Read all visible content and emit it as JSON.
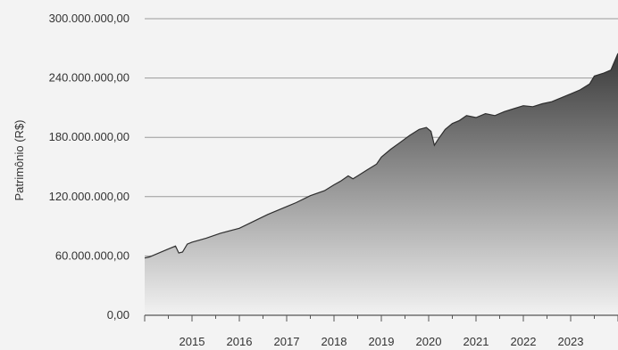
{
  "chart_data": {
    "type": "area",
    "title": "",
    "xlabel": "",
    "ylabel": "Patrimônio (R$)",
    "ylim": [
      0,
      300000000
    ],
    "yticks": [
      {
        "value": 0,
        "label": "0,00"
      },
      {
        "value": 60000000,
        "label": "60.000.000,00"
      },
      {
        "value": 120000000,
        "label": "120.000.000,00"
      },
      {
        "value": 180000000,
        "label": "180.000.000,00"
      },
      {
        "value": 240000000,
        "label": "240.000.000,00"
      },
      {
        "value": 300000000,
        "label": "300.000.000,00"
      }
    ],
    "xlim": [
      2014.0,
      2024.0
    ],
    "xticks": [
      {
        "value": 2015,
        "label": "2015"
      },
      {
        "value": 2016,
        "label": "2016"
      },
      {
        "value": 2017,
        "label": "2017"
      },
      {
        "value": 2018,
        "label": "2018"
      },
      {
        "value": 2019,
        "label": "2019"
      },
      {
        "value": 2020,
        "label": "2020"
      },
      {
        "value": 2021,
        "label": "2021"
      },
      {
        "value": 2022,
        "label": "2022"
      },
      {
        "value": 2023,
        "label": "2023"
      }
    ],
    "grid": "horizontal",
    "fill_gradient": {
      "top": "#3a3a3a",
      "bottom": "#f2f2f2"
    },
    "series": [
      {
        "x": [
          2014.0,
          2014.1,
          2014.3,
          2014.5,
          2014.65,
          2014.72,
          2014.8,
          2014.9,
          2015.0,
          2015.3,
          2015.6,
          2016.0,
          2016.3,
          2016.6,
          2017.0,
          2017.2,
          2017.5,
          2017.8,
          2018.0,
          2018.15,
          2018.3,
          2018.4,
          2018.5,
          2018.7,
          2018.9,
          2019.0,
          2019.2,
          2019.4,
          2019.6,
          2019.8,
          2019.95,
          2020.05,
          2020.12,
          2020.2,
          2020.35,
          2020.5,
          2020.65,
          2020.8,
          2021.0,
          2021.2,
          2021.4,
          2021.6,
          2021.8,
          2022.0,
          2022.2,
          2022.4,
          2022.6,
          2022.8,
          2023.0,
          2023.2,
          2023.4,
          2023.5,
          2023.7,
          2023.85,
          2024.0
        ],
        "y": [
          58000000,
          59000000,
          63000000,
          67000000,
          70000000,
          63000000,
          64000000,
          72000000,
          74000000,
          78000000,
          83000000,
          88000000,
          95000000,
          102000000,
          110000000,
          114000000,
          121000000,
          126000000,
          132000000,
          136000000,
          141000000,
          138000000,
          141000000,
          147000000,
          153000000,
          160000000,
          168000000,
          175000000,
          182000000,
          188000000,
          190000000,
          186000000,
          172000000,
          178000000,
          188000000,
          194000000,
          197000000,
          202000000,
          200000000,
          204000000,
          202000000,
          206000000,
          209000000,
          212000000,
          211000000,
          214000000,
          216000000,
          220000000,
          224000000,
          228000000,
          234000000,
          242000000,
          245000000,
          248000000,
          265000000
        ]
      }
    ]
  }
}
